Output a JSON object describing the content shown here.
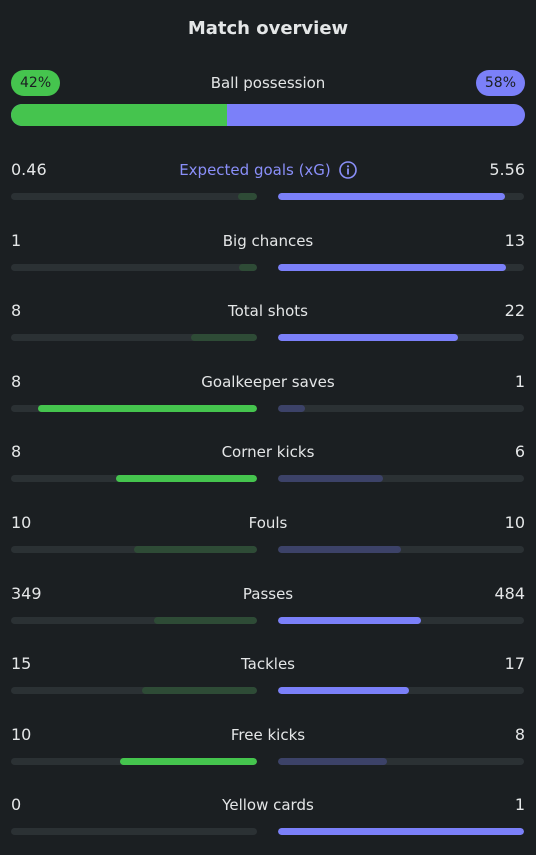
{
  "title": "Match overview",
  "possession": {
    "label": "Ball possession",
    "home": {
      "value": 42,
      "label": "42%"
    },
    "away": {
      "value": 58,
      "label": "58%"
    }
  },
  "stats": [
    {
      "label": "Expected goals (xG)",
      "home": 0.46,
      "away": 5.56
    },
    {
      "label": "Big chances",
      "home": 1,
      "away": 13
    },
    {
      "label": "Total shots",
      "home": 8,
      "away": 22
    },
    {
      "label": "Goalkeeper saves",
      "home": 8,
      "away": 1
    },
    {
      "label": "Corner kicks",
      "home": 8,
      "away": 6
    },
    {
      "label": "Fouls",
      "home": 10,
      "away": 10
    },
    {
      "label": "Passes",
      "home": 349,
      "away": 484
    },
    {
      "label": "Tackles",
      "home": 15,
      "away": 17
    },
    {
      "label": "Free kicks",
      "home": 10,
      "away": 8
    },
    {
      "label": "Yellow cards",
      "home": 0,
      "away": 1
    }
  ]
}
